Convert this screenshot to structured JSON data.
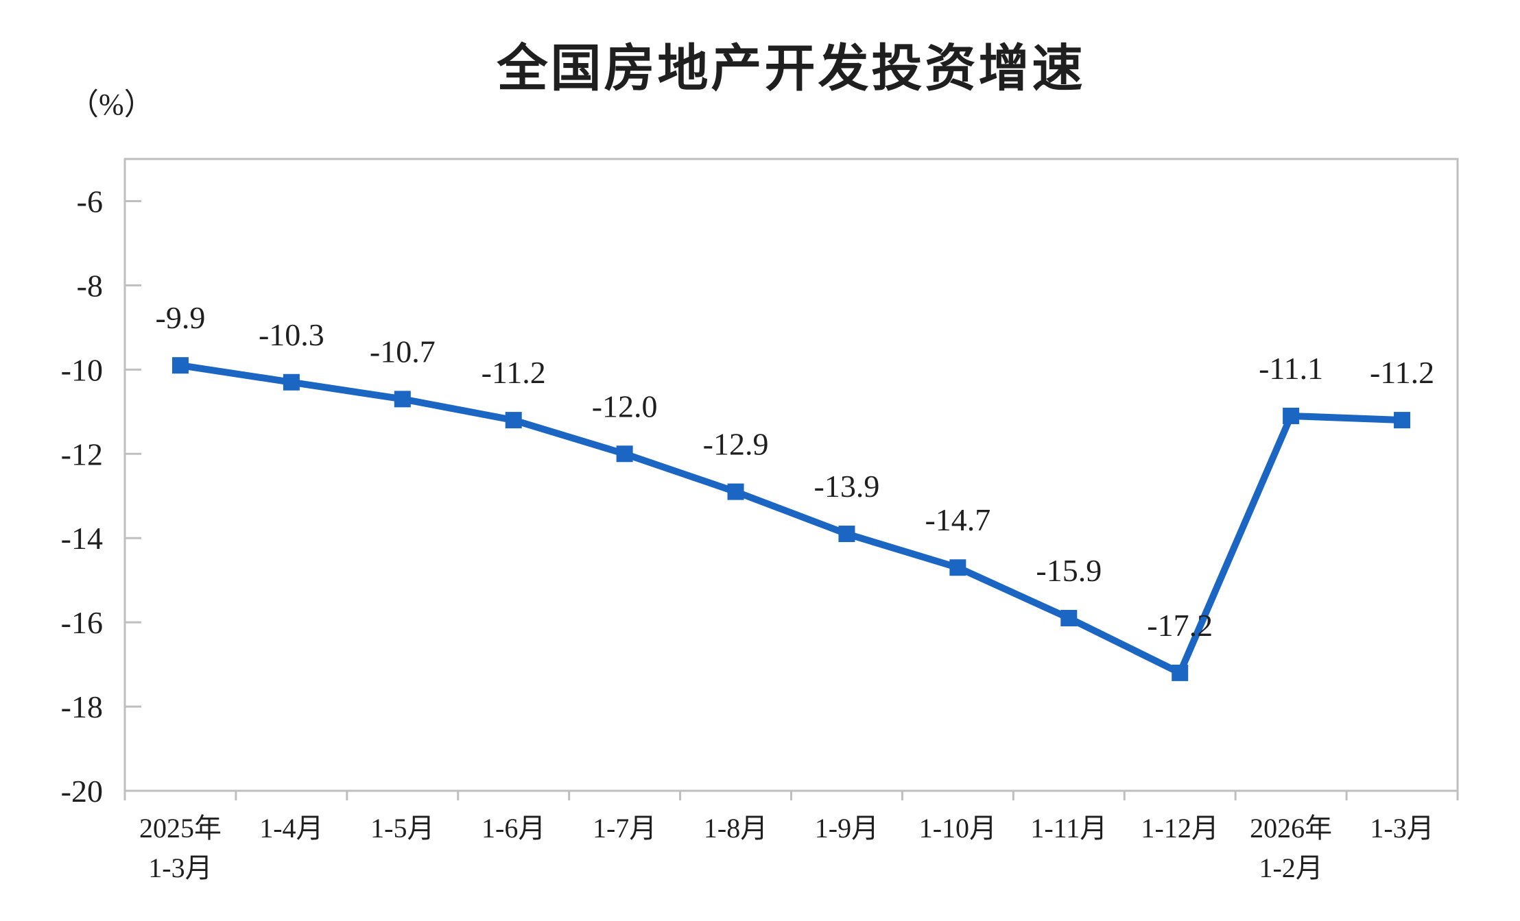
{
  "title": "全国房地产开发投资增速",
  "unit_label": "（%）",
  "colors": {
    "line": "#1b65c3",
    "axis": "#bfbfbf",
    "text": "#1f1f1f"
  },
  "chart_data": {
    "type": "line",
    "title": "全国房地产开发投资增速",
    "ylabel": "（%）",
    "xlabel": "",
    "categories": [
      [
        "2025年",
        "1-3月"
      ],
      [
        "1-4月"
      ],
      [
        "1-5月"
      ],
      [
        "1-6月"
      ],
      [
        "1-7月"
      ],
      [
        "1-8月"
      ],
      [
        "1-9月"
      ],
      [
        "1-10月"
      ],
      [
        "1-11月"
      ],
      [
        "1-12月"
      ],
      [
        "2026年",
        "1-2月"
      ],
      [
        "1-3月"
      ]
    ],
    "values": [
      -9.9,
      -10.3,
      -10.7,
      -11.2,
      -12.0,
      -12.9,
      -13.9,
      -14.7,
      -15.9,
      -17.2,
      -11.1,
      -11.2
    ],
    "point_labels": [
      "-9.9",
      "-10.3",
      "-10.7",
      "-11.2",
      "-12.0",
      "-12.9",
      "-13.9",
      "-14.7",
      "-15.9",
      "-17.2",
      "-11.1",
      "-11.2"
    ],
    "ylim": [
      -20,
      -5
    ],
    "yticks": [
      -6,
      -8,
      -10,
      -12,
      -14,
      -16,
      -18,
      -20
    ],
    "grid": false,
    "legend": "none",
    "marker": "square",
    "series_name": "全国房地产开发投资增速"
  }
}
